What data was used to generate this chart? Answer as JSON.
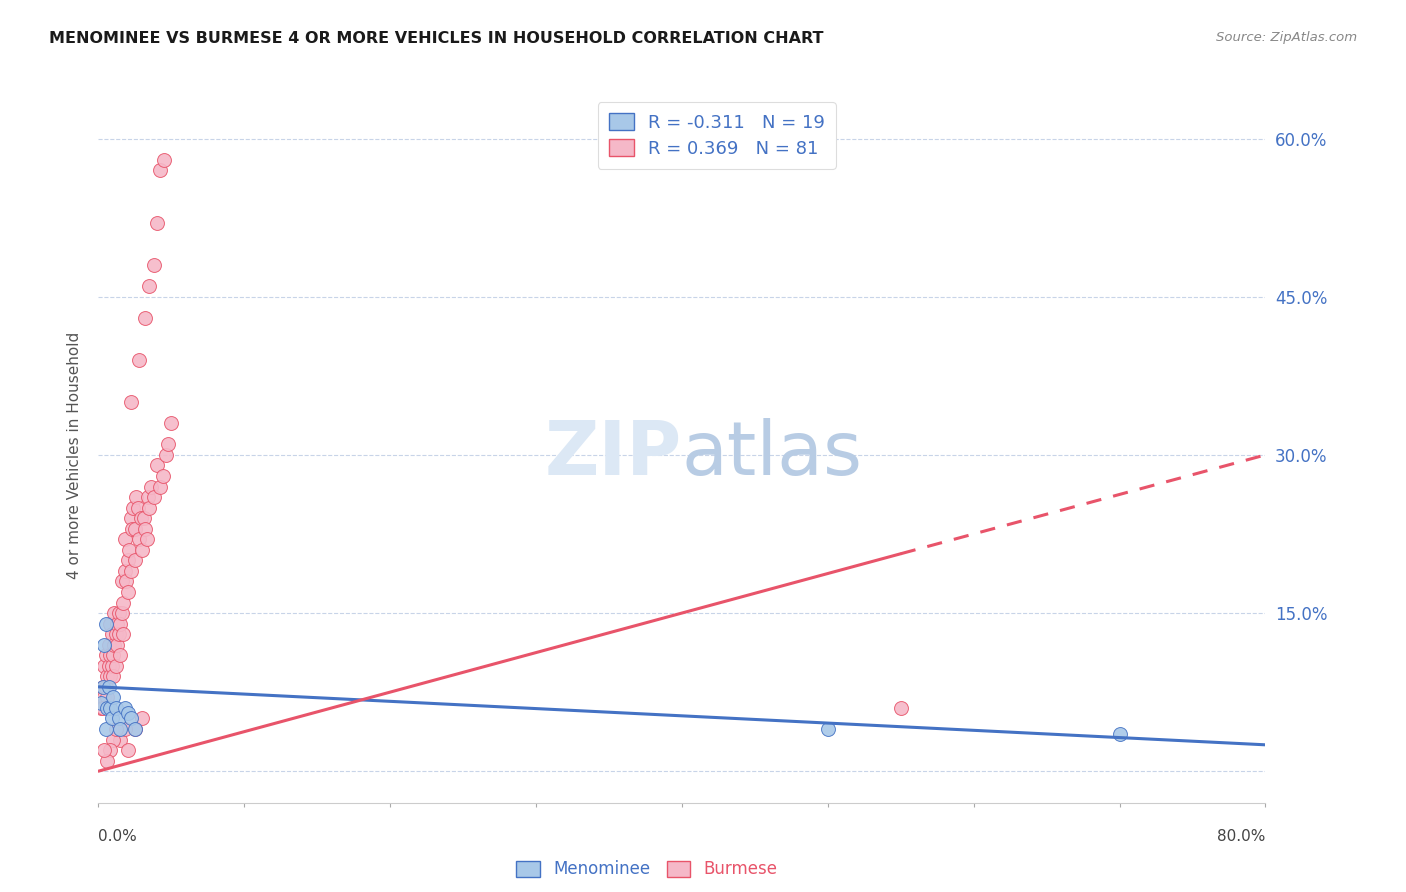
{
  "title": "MENOMINEE VS BURMESE 4 OR MORE VEHICLES IN HOUSEHOLD CORRELATION CHART",
  "source": "Source: ZipAtlas.com",
  "ylabel": "4 or more Vehicles in Household",
  "xlim": [
    0.0,
    0.8
  ],
  "ylim": [
    -0.03,
    0.63
  ],
  "menominee_R": -0.311,
  "menominee_N": 19,
  "burmese_R": 0.369,
  "burmese_N": 81,
  "menominee_color": "#a8c8e8",
  "burmese_color": "#f5b8c8",
  "menominee_line_color": "#4472c4",
  "burmese_line_color": "#e8546a",
  "background_color": "#ffffff",
  "grid_color": "#c8d4e8",
  "watermark_color": "#dce8f5",
  "yticks": [
    0.0,
    0.15,
    0.3,
    0.45,
    0.6
  ],
  "ytick_labels": [
    "",
    "15.0%",
    "30.0%",
    "45.0%",
    "60.0%"
  ],
  "menominee_line": [
    0.0,
    0.08,
    0.8,
    0.025
  ],
  "burmese_line": [
    0.0,
    0.0,
    0.8,
    0.3
  ],
  "menominee_x": [
    0.002,
    0.003,
    0.004,
    0.005,
    0.005,
    0.006,
    0.007,
    0.008,
    0.009,
    0.01,
    0.012,
    0.014,
    0.015,
    0.018,
    0.02,
    0.022,
    0.025,
    0.5,
    0.7
  ],
  "menominee_y": [
    0.065,
    0.08,
    0.12,
    0.14,
    0.04,
    0.06,
    0.08,
    0.06,
    0.05,
    0.07,
    0.06,
    0.05,
    0.04,
    0.06,
    0.055,
    0.05,
    0.04,
    0.04,
    0.035
  ],
  "burmese_x": [
    0.002,
    0.003,
    0.004,
    0.004,
    0.005,
    0.005,
    0.006,
    0.006,
    0.007,
    0.007,
    0.008,
    0.008,
    0.008,
    0.009,
    0.009,
    0.01,
    0.01,
    0.011,
    0.011,
    0.012,
    0.012,
    0.013,
    0.013,
    0.014,
    0.014,
    0.015,
    0.015,
    0.016,
    0.016,
    0.017,
    0.017,
    0.018,
    0.018,
    0.019,
    0.02,
    0.02,
    0.021,
    0.022,
    0.022,
    0.023,
    0.024,
    0.025,
    0.025,
    0.026,
    0.027,
    0.028,
    0.029,
    0.03,
    0.031,
    0.032,
    0.033,
    0.034,
    0.035,
    0.036,
    0.038,
    0.04,
    0.042,
    0.044,
    0.046,
    0.048,
    0.05,
    0.022,
    0.028,
    0.032,
    0.035,
    0.038,
    0.04,
    0.042,
    0.045,
    0.025,
    0.03,
    0.015,
    0.018,
    0.02,
    0.01,
    0.012,
    0.008,
    0.006,
    0.004,
    0.55,
    0.003
  ],
  "burmese_y": [
    0.06,
    0.08,
    0.07,
    0.1,
    0.08,
    0.11,
    0.07,
    0.09,
    0.1,
    0.12,
    0.09,
    0.11,
    0.14,
    0.1,
    0.13,
    0.11,
    0.09,
    0.12,
    0.15,
    0.13,
    0.1,
    0.14,
    0.12,
    0.15,
    0.13,
    0.14,
    0.11,
    0.15,
    0.18,
    0.16,
    0.13,
    0.19,
    0.22,
    0.18,
    0.2,
    0.17,
    0.21,
    0.24,
    0.19,
    0.23,
    0.25,
    0.2,
    0.23,
    0.26,
    0.25,
    0.22,
    0.24,
    0.21,
    0.24,
    0.23,
    0.22,
    0.26,
    0.25,
    0.27,
    0.26,
    0.29,
    0.27,
    0.28,
    0.3,
    0.31,
    0.33,
    0.35,
    0.39,
    0.43,
    0.46,
    0.48,
    0.52,
    0.57,
    0.58,
    0.04,
    0.05,
    0.03,
    0.04,
    0.02,
    0.03,
    0.04,
    0.02,
    0.01,
    0.02,
    0.06,
    0.06
  ]
}
